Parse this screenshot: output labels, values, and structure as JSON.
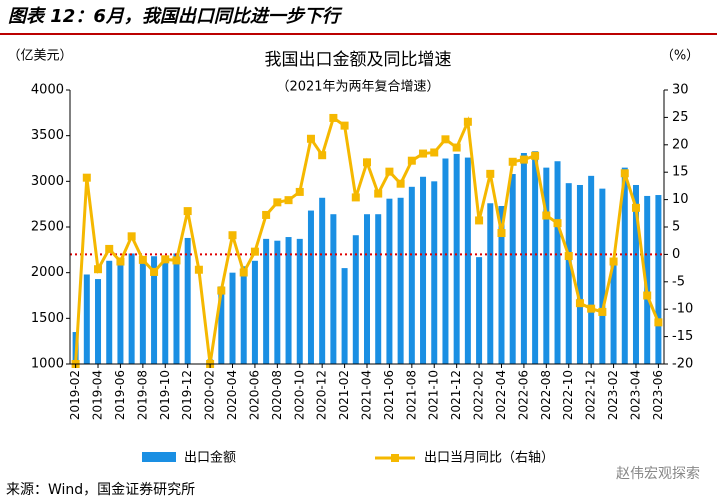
{
  "header": {
    "title": "图表 12：6月，我国出口同比进一步下行"
  },
  "chart_data": {
    "type": "bar-line",
    "title": "我国出口金额及同比增速",
    "subtitle": "（2021年为两年复合增速）",
    "y_label": "（亿美元）",
    "y2_label": "（%）",
    "categories": [
      "2019-02",
      null,
      "2019-04",
      null,
      "2019-06",
      null,
      "2019-08",
      null,
      "2019-10",
      null,
      "2019-12",
      null,
      "2020-02",
      null,
      "2020-04",
      null,
      "2020-06",
      null,
      "2020-08",
      null,
      "2020-10",
      null,
      "2020-12",
      null,
      "2021-02",
      null,
      "2021-04",
      null,
      "2021-06",
      null,
      "2021-08",
      null,
      "2021-10",
      null,
      "2021-12",
      null,
      "2022-02",
      null,
      "2022-04",
      null,
      "2022-06",
      null,
      "2022-08",
      null,
      "2022-10",
      null,
      "2022-12",
      null,
      "2023-02",
      null,
      "2023-04",
      null,
      "2023-06"
    ],
    "series": [
      {
        "name": "出口金额",
        "type": "bar",
        "color": "#1a8fe3",
        "values": [
          1350,
          1980,
          1930,
          2130,
          2120,
          2210,
          2140,
          2180,
          2130,
          2210,
          2380,
          null,
          1050,
          1850,
          2000,
          2070,
          2130,
          2370,
          2350,
          2390,
          2370,
          2680,
          2820,
          2640,
          2050,
          2410,
          2640,
          2640,
          2810,
          2820,
          2940,
          3050,
          3000,
          3250,
          3300,
          3260,
          2170,
          2760,
          2730,
          3080,
          3310,
          3330,
          3150,
          3220,
          2980,
          2960,
          3060,
          2920,
          2090,
          3150,
          2960,
          2840,
          2850
        ]
      },
      {
        "name": "出口当月同比（右轴）",
        "type": "line",
        "axis": "y2",
        "color": "#f5b800",
        "values": [
          -20,
          14,
          -2.7,
          1,
          -1.3,
          3.3,
          -1,
          -3.2,
          -0.9,
          -1.1,
          7.9,
          -2.8,
          -20,
          -6.6,
          3.5,
          -3.3,
          0.5,
          7.2,
          9.5,
          9.9,
          11.4,
          21.1,
          18.1,
          24.9,
          23.5,
          10.4,
          16.8,
          11.1,
          15.1,
          12.9,
          17.1,
          18.4,
          18.6,
          21,
          19.5,
          24.2,
          6.2,
          14.7,
          3.9,
          16.9,
          17.3,
          18,
          7.1,
          5.7,
          -0.3,
          -8.9,
          -9.9,
          -10.5,
          -1.3,
          14.8,
          8.5,
          -7.5,
          -12.4
        ]
      }
    ],
    "ylim": [
      1000,
      4000
    ],
    "yticks": [
      1000,
      1500,
      2000,
      2500,
      3000,
      3500,
      4000
    ],
    "y2lim": [
      -20,
      30
    ],
    "y2ticks": [
      -20,
      -15,
      -10,
      -5,
      0,
      5,
      10,
      15,
      20,
      25,
      30
    ],
    "reference_line": {
      "axis": "y2",
      "value": 0,
      "color": "#e00000"
    },
    "legend": "bottom"
  },
  "source": "来源：Wind，国金证券研究所",
  "watermark": "赵伟宏观探索"
}
